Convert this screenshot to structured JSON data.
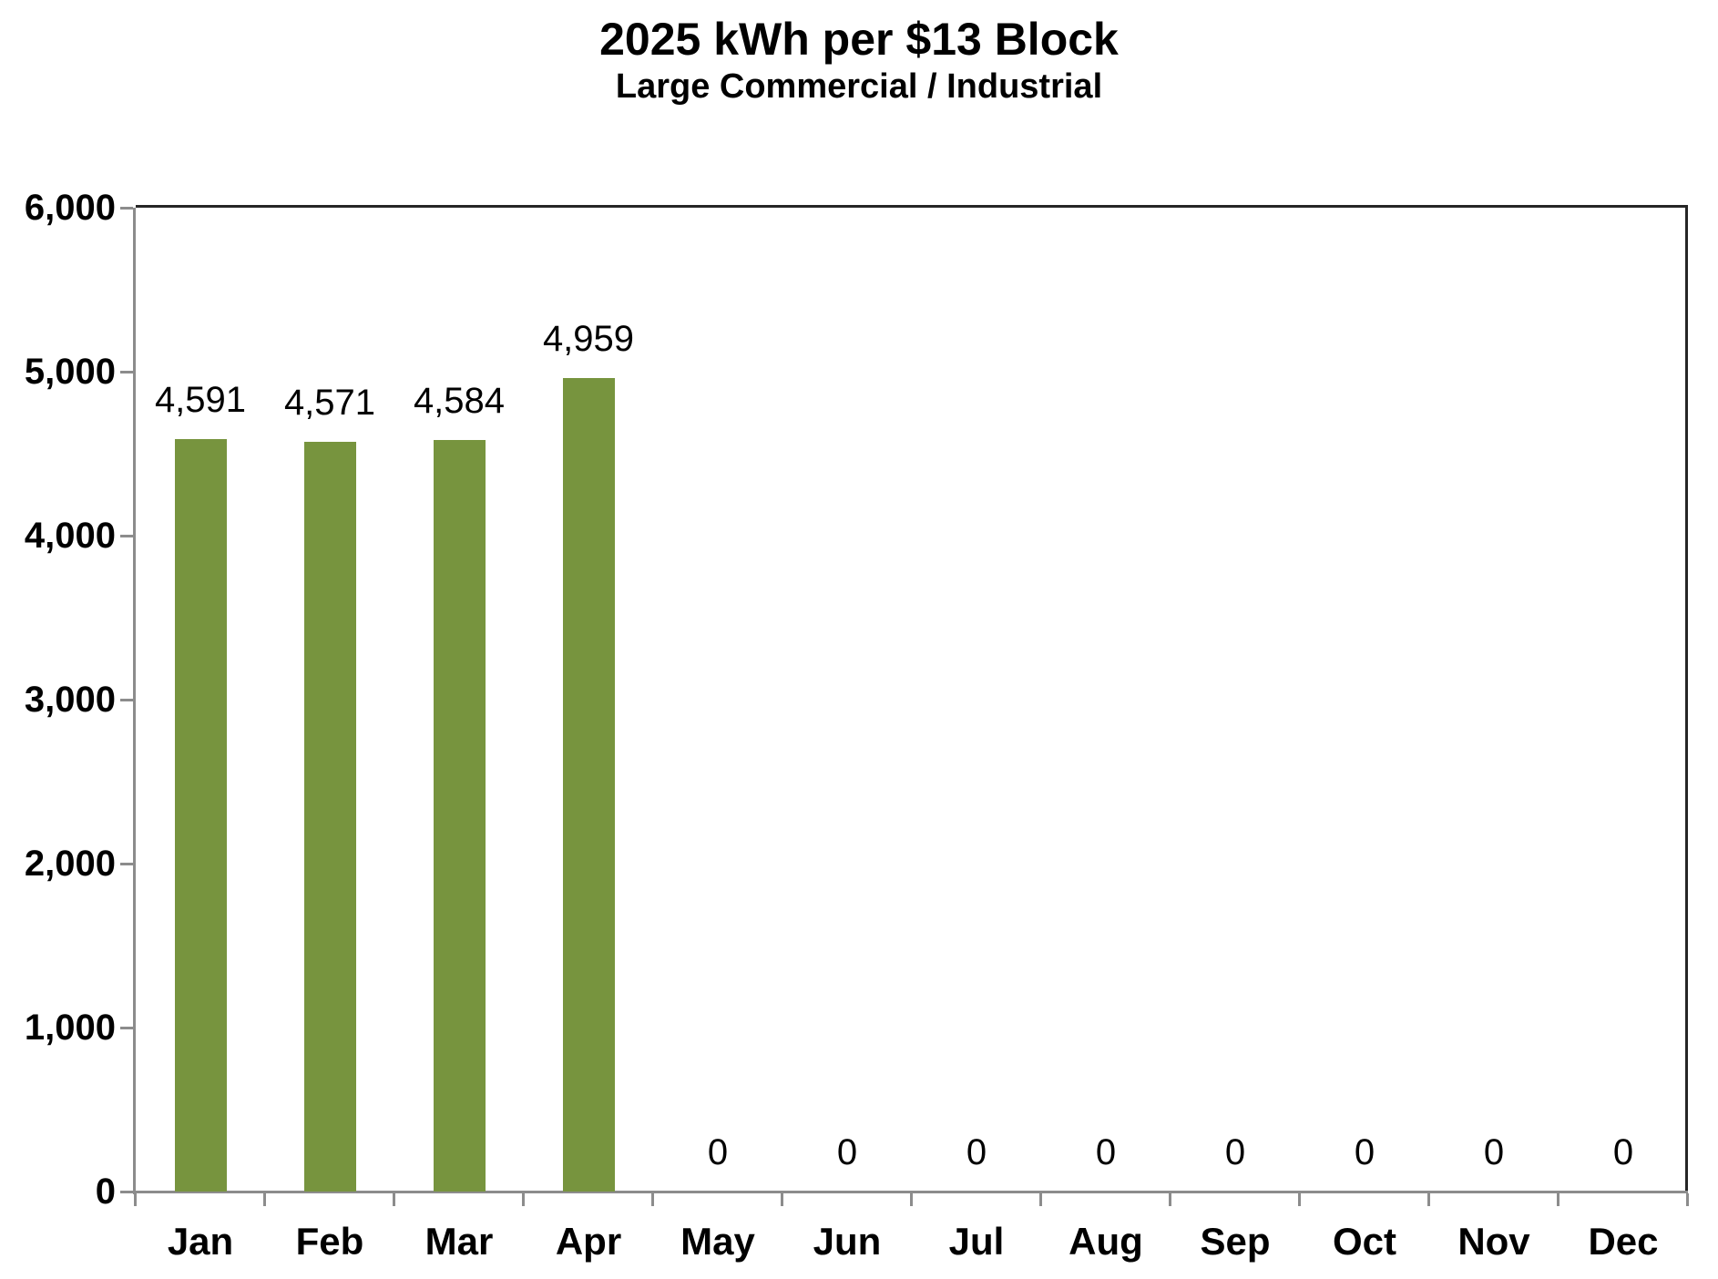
{
  "chart_data": {
    "type": "bar",
    "title": "2025 kWh per $13 Block",
    "subtitle": "Large Commercial / Industrial",
    "categories": [
      "Jan",
      "Feb",
      "Mar",
      "Apr",
      "May",
      "Jun",
      "Jul",
      "Aug",
      "Sep",
      "Oct",
      "Nov",
      "Dec"
    ],
    "values": [
      4591,
      4571,
      4584,
      4959,
      0,
      0,
      0,
      0,
      0,
      0,
      0,
      0
    ],
    "data_labels": [
      "4,591",
      "4,571",
      "4,584",
      "4,959",
      "0",
      "0",
      "0",
      "0",
      "0",
      "0",
      "0",
      "0"
    ],
    "xlabel": "",
    "ylabel": "",
    "ylim": [
      0,
      6000
    ],
    "ytick_interval": 1000,
    "y_ticks": [
      {
        "value": 0,
        "label": "0"
      },
      {
        "value": 1000,
        "label": "1,000"
      },
      {
        "value": 2000,
        "label": "2,000"
      },
      {
        "value": 3000,
        "label": "3,000"
      },
      {
        "value": 4000,
        "label": "4,000"
      },
      {
        "value": 5000,
        "label": "5,000"
      },
      {
        "value": 6000,
        "label": "6,000"
      }
    ],
    "grid": false,
    "legend": false,
    "colors": {
      "bar_fill": "#77943E",
      "axis_line": "#8C8C8C",
      "plot_border": "#262626",
      "text": "#000000",
      "background": "#ffffff"
    }
  }
}
